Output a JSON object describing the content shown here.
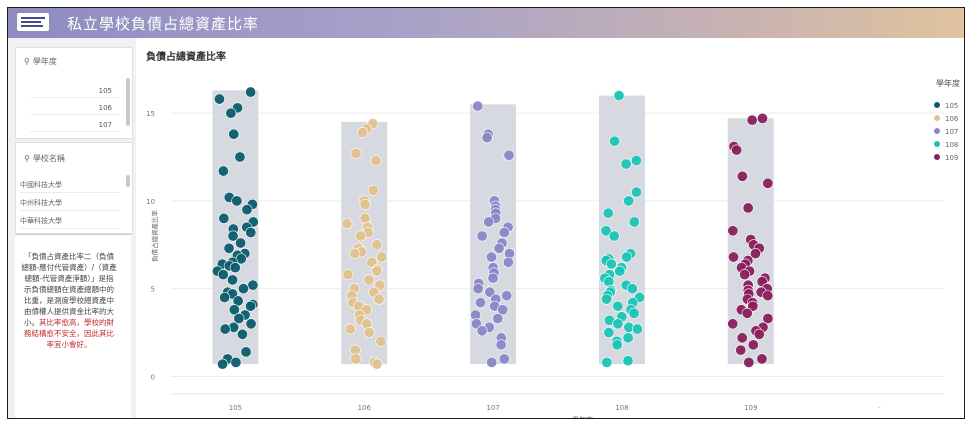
{
  "app": {
    "title": "私立學校負債占總資產比率"
  },
  "filters": [
    {
      "label": "學年度",
      "items": [
        "105",
        "106",
        "107"
      ]
    },
    {
      "label": "學校名稱",
      "items": [
        "中國科技大學",
        "中州科技大學",
        "中華科技大學"
      ]
    }
  ],
  "note": {
    "text": "「負債占資產比率二（負債總額-應付代管資產）/（資產總額-代管資產淨額）」是指示負債總額在資產總額中的比重，是測度學校總資產中由債權人提供資金比率的大小。",
    "highlight": "其比率愈高，學校的財務結構愈不安全，因此其比率宜小會好。"
  },
  "colors": {
    "105": "#0b5c6e",
    "106": "#e2c28e",
    "107": "#8c86c9",
    "108": "#1cc4b6",
    "109": "#8a1f5e",
    "box": "#d6d9e0"
  },
  "chart_data": {
    "type": "scatter",
    "title": "負債占總資產比率",
    "xlabel": "學年度",
    "ylabel": "負債占總資產比率",
    "categories": [
      "105",
      "106",
      "107",
      "108",
      "109"
    ],
    "ylim": [
      -1,
      17
    ],
    "yticks": [
      0,
      5,
      10,
      15
    ],
    "legend": {
      "title": "學年度",
      "position": "right"
    },
    "grid": true,
    "ranges": [
      {
        "category": "105",
        "min": 0.7,
        "max": 16.3
      },
      {
        "category": "106",
        "min": 0.7,
        "max": 14.5
      },
      {
        "category": "107",
        "min": 0.7,
        "max": 15.5
      },
      {
        "category": "108",
        "min": 0.7,
        "max": 16.0
      },
      {
        "category": "109",
        "min": 0.7,
        "max": 14.7
      }
    ],
    "series": [
      {
        "name": "105",
        "values": [
          16.2,
          15.8,
          15.3,
          15.0,
          13.8,
          12.5,
          11.7,
          10.2,
          10.0,
          9.8,
          9.5,
          9.0,
          8.8,
          8.5,
          8.4,
          8.2,
          8.0,
          7.6,
          7.3,
          7.0,
          6.9,
          6.7,
          6.5,
          6.4,
          6.3,
          6.2,
          6.0,
          5.8,
          5.5,
          5.2,
          5.0,
          4.8,
          4.7,
          4.5,
          4.3,
          4.1,
          4.0,
          3.8,
          3.5,
          3.3,
          3.0,
          2.8,
          2.7,
          2.4,
          1.4,
          1.0,
          0.8,
          0.7
        ]
      },
      {
        "name": "106",
        "values": [
          14.4,
          14.1,
          13.9,
          12.7,
          12.3,
          10.6,
          10.0,
          9.8,
          9.0,
          8.7,
          8.5,
          8.2,
          8.0,
          7.5,
          7.3,
          7.1,
          7.0,
          6.8,
          6.5,
          6.1,
          6.0,
          5.8,
          5.5,
          5.2,
          5.0,
          4.8,
          4.6,
          4.4,
          4.2,
          4.0,
          3.8,
          3.5,
          3.2,
          3.0,
          2.7,
          2.5,
          2.0,
          1.5,
          1.0,
          0.8,
          0.7
        ]
      },
      {
        "name": "107",
        "values": [
          15.4,
          13.8,
          13.6,
          12.6,
          10.0,
          9.7,
          9.5,
          9.3,
          9.0,
          8.8,
          8.5,
          8.2,
          8.0,
          7.6,
          7.3,
          7.0,
          6.8,
          6.5,
          6.2,
          5.9,
          5.6,
          5.3,
          5.0,
          4.8,
          4.6,
          4.4,
          4.2,
          4.0,
          3.8,
          3.5,
          3.3,
          3.0,
          2.8,
          2.6,
          2.2,
          1.8,
          1.0,
          0.8
        ]
      },
      {
        "name": "108",
        "values": [
          16.0,
          13.4,
          12.3,
          12.1,
          10.5,
          10.0,
          9.3,
          8.8,
          8.3,
          8.0,
          7.0,
          6.8,
          6.7,
          6.6,
          6.4,
          6.2,
          6.0,
          5.8,
          5.6,
          5.4,
          5.2,
          5.0,
          4.9,
          4.8,
          4.6,
          4.5,
          4.4,
          4.2,
          4.0,
          3.8,
          3.6,
          3.4,
          3.2,
          3.0,
          2.8,
          2.7,
          2.5,
          2.2,
          2.0,
          1.8,
          0.9,
          0.8
        ]
      },
      {
        "name": "109",
        "values": [
          14.7,
          14.6,
          13.1,
          12.9,
          11.4,
          11.0,
          9.6,
          8.3,
          7.8,
          7.5,
          7.3,
          7.0,
          6.8,
          6.6,
          6.4,
          6.2,
          6.0,
          5.8,
          5.6,
          5.4,
          5.2,
          5.0,
          4.9,
          4.8,
          4.7,
          4.6,
          4.4,
          4.2,
          4.0,
          3.8,
          3.6,
          3.3,
          3.0,
          2.8,
          2.6,
          2.4,
          2.2,
          1.8,
          1.5,
          1.0,
          0.8
        ]
      }
    ]
  }
}
